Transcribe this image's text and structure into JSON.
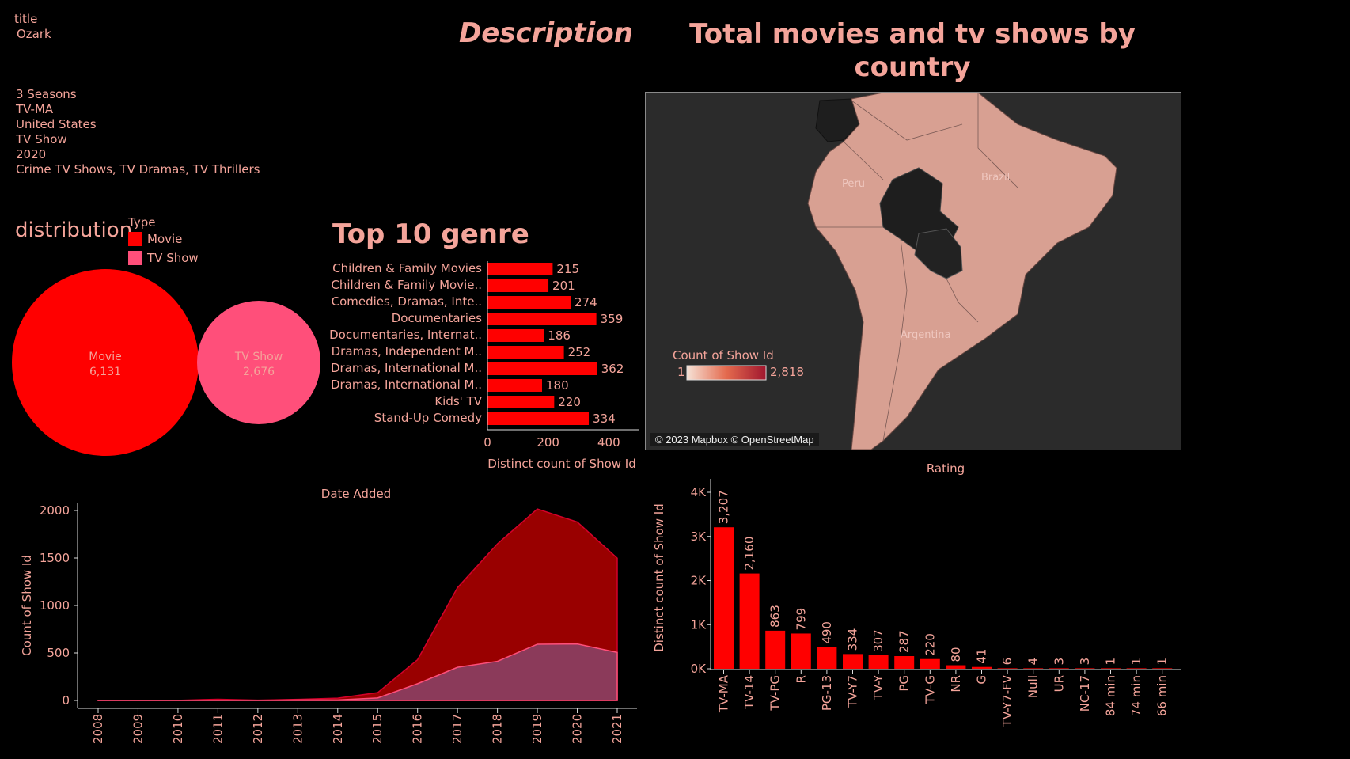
{
  "description": {
    "title_label": "title",
    "title_value": "Ozark",
    "lines": [
      "3 Seasons",
      "TV-MA",
      "United States",
      "TV Show",
      "2020",
      "Crime TV Shows, TV Dramas, TV Thrillers"
    ],
    "heading": "Description"
  },
  "map": {
    "title_line1": "Total movies and tv shows by",
    "title_line2": "country",
    "legend_title": "Count of Show Id",
    "legend_min": "1",
    "legend_max": "2,818",
    "labels": [
      "Peru",
      "Brazil",
      "Argentina"
    ],
    "attribution": "© 2023 Mapbox © OpenStreetMap",
    "colors": {
      "land": "#d8a092",
      "high": "#a0162e",
      "low": "#f6e2d6",
      "nodata": "#1e1e1e",
      "water": "#2b2b2b"
    }
  },
  "distribution": {
    "title": "distribution",
    "legend_title": "Type",
    "legend": [
      {
        "name": "Movie",
        "color": "#ff0000"
      },
      {
        "name": "TV Show",
        "color": "#ff4f7a"
      }
    ],
    "bubbles": [
      {
        "name": "Movie",
        "value": "6,131"
      },
      {
        "name": "TV Show",
        "value": "2,676"
      }
    ]
  },
  "chart_data": [
    {
      "type": "bar",
      "orientation": "horizontal",
      "title": "Top 10 genre",
      "xlabel": "Distinct count of Show Id",
      "xticks": [
        "0",
        "200",
        "400"
      ],
      "xlim": [
        0,
        480
      ],
      "categories": [
        "Children & Family Movies",
        "Children & Family Movie..",
        "Comedies, Dramas, Inte..",
        "Documentaries",
        "Documentaries, Internat..",
        "Dramas, Independent M..",
        "Dramas, International M..",
        "Dramas, International M..",
        "Kids' TV",
        "Stand-Up Comedy"
      ],
      "values": [
        215,
        201,
        274,
        359,
        186,
        252,
        362,
        180,
        220,
        334
      ],
      "color": "#ff0000"
    },
    {
      "type": "area",
      "title": "Date Added",
      "ylabel": "Count of Show Id",
      "x": [
        "2008",
        "2009",
        "2010",
        "2011",
        "2012",
        "2013",
        "2014",
        "2015",
        "2016",
        "2017",
        "2018",
        "2019",
        "2020",
        "2021"
      ],
      "yticks": [
        "0",
        "500",
        "1000",
        "1500",
        "2000"
      ],
      "ylim": [
        0,
        2000
      ],
      "series": [
        {
          "name": "Movie",
          "values": [
            1,
            2,
            1,
            13,
            3,
            6,
            19,
            56,
            253,
            839,
            1237,
            1424,
            1284,
            993
          ],
          "color": "#990000"
        },
        {
          "name": "TV Show",
          "values": [
            1,
            0,
            0,
            0,
            0,
            5,
            5,
            26,
            176,
            349,
            412,
            592,
            595,
            505
          ],
          "color": "#8b3a5a"
        }
      ]
    },
    {
      "type": "bar",
      "title": "Rating",
      "ylabel": "Distinct count of Show Id",
      "yticks": [
        "0K",
        "1K",
        "2K",
        "3K",
        "4K"
      ],
      "ylim": [
        0,
        4000
      ],
      "categories": [
        "TV-MA",
        "TV-14",
        "TV-PG",
        "R",
        "PG-13",
        "TV-Y7",
        "TV-Y",
        "PG",
        "TV-G",
        "NR",
        "G",
        "TV-Y7-FV",
        "Null",
        "UR",
        "NC-17",
        "84 min",
        "74 min",
        "66 min"
      ],
      "values": [
        3207,
        2160,
        863,
        799,
        490,
        334,
        307,
        287,
        220,
        80,
        41,
        6,
        4,
        3,
        3,
        1,
        1,
        1
      ],
      "value_labels": [
        "3,207",
        "2,160",
        "863",
        "799",
        "490",
        "334",
        "307",
        "287",
        "220",
        "80",
        "41",
        "6",
        "4",
        "3",
        "3",
        "1",
        "1",
        "1"
      ],
      "color": "#ff0000"
    }
  ]
}
